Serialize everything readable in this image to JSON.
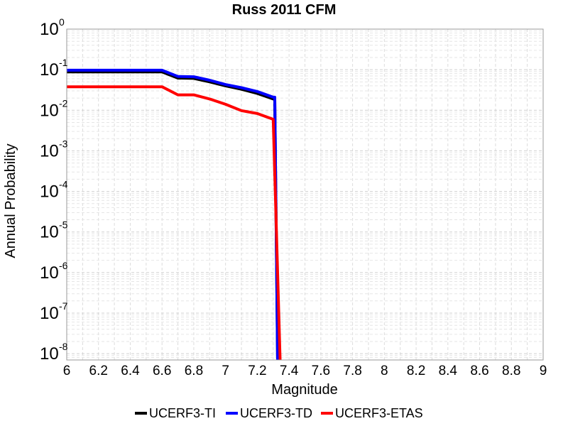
{
  "chart_data": {
    "type": "line",
    "title": "Russ 2011 CFM",
    "xlabel": "Magnitude",
    "ylabel": "Annual Probability",
    "xlim": [
      6,
      9
    ],
    "ylim": [
      7e-09,
      1
    ],
    "yscale": "log",
    "grid": true,
    "legend_position": "bottom",
    "x_ticks": [
      "6",
      "6.2",
      "6.4",
      "6.6",
      "6.8",
      "7",
      "7.2",
      "7.4",
      "7.6",
      "7.8",
      "8",
      "8.2",
      "8.4",
      "8.6",
      "8.8",
      "9"
    ],
    "y_ticks": [
      {
        "base": "10",
        "exp": "0",
        "value": 1
      },
      {
        "base": "10",
        "exp": "-1",
        "value": 0.1
      },
      {
        "base": "10",
        "exp": "-2",
        "value": 0.01
      },
      {
        "base": "10",
        "exp": "-3",
        "value": 0.001
      },
      {
        "base": "10",
        "exp": "-4",
        "value": 0.0001
      },
      {
        "base": "10",
        "exp": "-5",
        "value": 1e-05
      },
      {
        "base": "10",
        "exp": "-6",
        "value": 1e-06
      },
      {
        "base": "10",
        "exp": "-7",
        "value": 1e-07
      },
      {
        "base": "10",
        "exp": "-8",
        "value": 1e-08
      }
    ],
    "series": [
      {
        "name": "UCERF3-TI",
        "color": "#000000",
        "x": [
          6.0,
          6.1,
          6.2,
          6.3,
          6.4,
          6.5,
          6.6,
          6.7,
          6.8,
          6.9,
          7.0,
          7.1,
          7.2,
          7.3,
          7.31,
          7.33
        ],
        "y": [
          0.088,
          0.088,
          0.088,
          0.088,
          0.088,
          0.088,
          0.088,
          0.062,
          0.061,
          0.05,
          0.04,
          0.033,
          0.026,
          0.019,
          0.019,
          1e-09
        ]
      },
      {
        "name": "UCERF3-TD",
        "color": "#0000ff",
        "x": [
          6.0,
          6.1,
          6.2,
          6.3,
          6.4,
          6.5,
          6.6,
          6.7,
          6.8,
          6.9,
          7.0,
          7.1,
          7.2,
          7.3,
          7.31,
          7.33
        ],
        "y": [
          0.097,
          0.097,
          0.097,
          0.097,
          0.097,
          0.097,
          0.097,
          0.068,
          0.067,
          0.055,
          0.043,
          0.036,
          0.029,
          0.021,
          0.021,
          1e-09
        ]
      },
      {
        "name": "UCERF3-ETAS",
        "color": "#ff0000",
        "x": [
          6.0,
          6.1,
          6.2,
          6.3,
          6.4,
          6.5,
          6.6,
          6.7,
          6.8,
          6.9,
          7.0,
          7.1,
          7.2,
          7.3,
          7.35
        ],
        "y": [
          0.038,
          0.038,
          0.038,
          0.038,
          0.038,
          0.038,
          0.038,
          0.024,
          0.024,
          0.019,
          0.014,
          0.0098,
          0.0083,
          0.006,
          1e-09
        ]
      }
    ]
  }
}
